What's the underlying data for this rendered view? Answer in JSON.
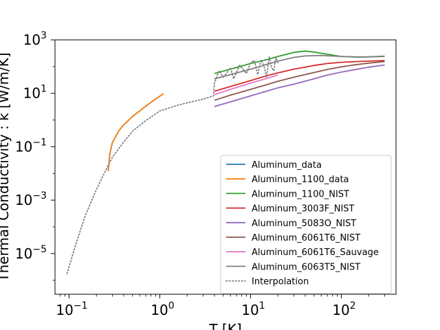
{
  "chart_data": {
    "type": "line",
    "title": "",
    "xlabel": "T [K]",
    "ylabel": "Thermal Conductivity : k [W/m/K]",
    "xscale": "log",
    "yscale": "log",
    "xlim": [
      0.07,
      400
    ],
    "ylim": [
      3e-07,
      1000
    ],
    "x_ticks": [
      {
        "value": 0.1,
        "base": "10",
        "exp": "−1"
      },
      {
        "value": 1,
        "base": "10",
        "exp": "0"
      },
      {
        "value": 10,
        "base": "10",
        "exp": "1"
      },
      {
        "value": 100,
        "base": "10",
        "exp": "2"
      }
    ],
    "y_ticks": [
      {
        "value": 1e-05,
        "base": "10",
        "exp": "−5"
      },
      {
        "value": 0.001,
        "base": "10",
        "exp": "−3"
      },
      {
        "value": 0.1,
        "base": "10",
        "exp": "−1"
      },
      {
        "value": 10,
        "base": "10",
        "exp": "1"
      },
      {
        "value": 1000,
        "base": "10",
        "exp": "3"
      }
    ],
    "grid": false,
    "legend_position": "lower-right",
    "series": [
      {
        "name": "Aluminum_data",
        "color": "#1f77b4",
        "style": "solid",
        "x": [
          0.27,
          0.28,
          0.3,
          0.35,
          0.4,
          0.5,
          0.6,
          0.7,
          0.8,
          0.9,
          1.0,
          1.1
        ],
        "y": [
          0.012,
          0.05,
          0.14,
          0.38,
          0.66,
          1.35,
          2.2,
          3.3,
          4.6,
          6.1,
          7.8,
          9.8
        ]
      },
      {
        "name": "Aluminum_1100_data",
        "color": "#ff7f0e",
        "style": "solid",
        "x": [
          0.27,
          0.28,
          0.3,
          0.35,
          0.4,
          0.5,
          0.6,
          0.7,
          0.8,
          0.9,
          1.0,
          1.1
        ],
        "y": [
          0.012,
          0.05,
          0.14,
          0.38,
          0.66,
          1.35,
          2.2,
          3.3,
          4.6,
          6.1,
          7.8,
          9.8
        ]
      },
      {
        "name": "Aluminum_1100_NIST",
        "color": "#2ca02c",
        "style": "solid",
        "x": [
          4,
          6,
          10,
          15,
          20,
          30,
          40,
          50,
          70,
          100,
          150,
          200,
          300
        ],
        "y": [
          55,
          80,
          130,
          180,
          240,
          340,
          380,
          350,
          290,
          240,
          225,
          232,
          240
        ]
      },
      {
        "name": "Aluminum_3003F_NIST",
        "color": "#d62728",
        "style": "solid",
        "x": [
          4,
          6,
          10,
          15,
          20,
          30,
          50,
          70,
          100,
          150,
          200,
          300
        ],
        "y": [
          12,
          18,
          30,
          45,
          58,
          80,
          110,
          130,
          145,
          155,
          160,
          168
        ]
      },
      {
        "name": "Aluminum_5083O_NIST",
        "color": "#9467bd",
        "style": "solid",
        "x": [
          4,
          6,
          10,
          15,
          20,
          30,
          50,
          70,
          100,
          150,
          200,
          300
        ],
        "y": [
          3.2,
          4.8,
          8,
          12,
          16,
          22,
          35,
          48,
          62,
          80,
          95,
          115
        ]
      },
      {
        "name": "Aluminum_6061T6_NIST",
        "color": "#8c564b",
        "style": "solid",
        "x": [
          4,
          6,
          10,
          15,
          20,
          30,
          50,
          70,
          100,
          150,
          200,
          300
        ],
        "y": [
          5.5,
          8.5,
          14,
          21,
          28,
          40,
          60,
          78,
          98,
          120,
          135,
          155
        ]
      },
      {
        "name": "Aluminum_6061T6_Sauvage",
        "color": "#e377c2",
        "style": "solid",
        "x": [
          4,
          6,
          10,
          15,
          20
        ],
        "y": [
          9,
          14,
          24,
          36,
          48
        ]
      },
      {
        "name": "Aluminum_6063T5_NIST",
        "color": "#7f7f7f",
        "style": "solid",
        "x": [
          4,
          6,
          10,
          15,
          20,
          30,
          40,
          60,
          100,
          150,
          200,
          300
        ],
        "y": [
          35,
          50,
          80,
          120,
          160,
          220,
          250,
          260,
          240,
          230,
          232,
          245
        ]
      },
      {
        "name": "Interpolation",
        "color": "#7f7f7f",
        "style": "dotted",
        "x": [
          0.095,
          0.12,
          0.15,
          0.2,
          0.25,
          0.3,
          0.4,
          0.5,
          0.7,
          1.0,
          1.5,
          2.0,
          3.0,
          3.9,
          4.0,
          4.5,
          5,
          5.5,
          6,
          6.5,
          7,
          7.5,
          8,
          9,
          10,
          11,
          12,
          13,
          14,
          15,
          16,
          17,
          18,
          19,
          20
        ],
        "y": [
          1.8e-06,
          2.5e-05,
          0.00025,
          0.0025,
          0.012,
          0.04,
          0.15,
          0.38,
          0.95,
          2.2,
          3.4,
          4.4,
          6.0,
          8.0,
          25,
          70,
          40,
          60,
          90,
          35,
          60,
          110,
          90,
          55,
          140,
          170,
          50,
          180,
          110,
          40,
          230,
          90,
          70,
          230,
          140
        ]
      }
    ]
  }
}
